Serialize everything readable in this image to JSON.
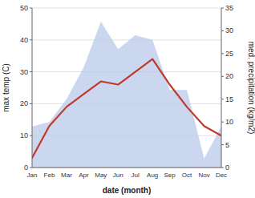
{
  "chart_data": {
    "type": "line",
    "xlabel": "date (month)",
    "ylabel": "max temp (C)",
    "y2label": "med. precipitation (kg/m2)",
    "categories": [
      "Jan",
      "Feb",
      "Mar",
      "Apr",
      "May",
      "Jun",
      "Jul",
      "Aug",
      "Sep",
      "Oct",
      "Nov",
      "Dec"
    ],
    "series": [
      {
        "type": "area",
        "axis": "y2",
        "color": "#b8c9e8",
        "values": [
          9,
          10,
          15,
          22,
          32,
          26,
          29,
          28,
          17,
          17,
          2,
          9
        ]
      },
      {
        "type": "line",
        "color": "#c0392b",
        "values": [
          3,
          13,
          19,
          23,
          27,
          26,
          30,
          34,
          26,
          19,
          13,
          10
        ]
      }
    ],
    "ylim": [
      0,
      50
    ],
    "yticks": [
      0,
      10,
      20,
      30,
      40,
      50
    ],
    "y2lim": [
      0,
      35
    ],
    "y2ticks": [
      0,
      5,
      10,
      15,
      20,
      25,
      30,
      35
    ],
    "grid": true
  }
}
